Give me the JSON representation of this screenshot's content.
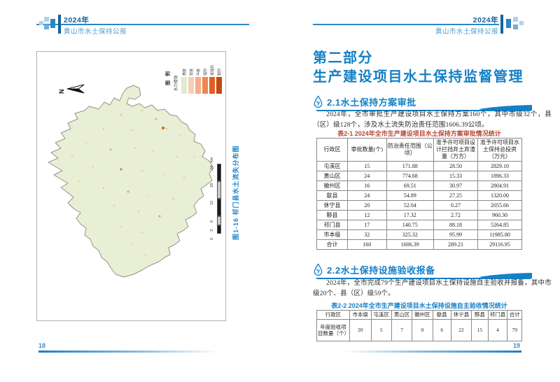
{
  "colors": {
    "accent_blue": "#1580c6",
    "header_year_blue": "#15629e",
    "header_subtitle_blue": "#4d9bd0",
    "table1_caption_red": "#b5483a",
    "page_number_blue": "#3090d4"
  },
  "left_page": {
    "header": {
      "year": "2024年",
      "title": "黄山市水土保持公报"
    },
    "map": {
      "north_label": "N",
      "legend": {
        "title": "图 例",
        "subtitle": "水力侵蚀",
        "classes": [
          {
            "label": "微度",
            "color": "#dfeccd"
          },
          {
            "label": "轻度",
            "color": "#f8cfb6"
          },
          {
            "label": "中度",
            "color": "#f5ad89"
          },
          {
            "label": "强烈",
            "color": "#ef8555"
          },
          {
            "label": "极强烈",
            "color": "#e25d20"
          },
          {
            "label": "剧烈",
            "color": "#c34a0f"
          }
        ]
      },
      "scale": {
        "ticks": [
          0,
          3,
          6,
          12,
          18,
          24
        ],
        "unit": "km"
      },
      "caption": "图1-16 祁门县水土流失分布图"
    },
    "page_number": "18"
  },
  "right_page": {
    "header": {
      "year": "2024年",
      "title": "黄山市水土保持公报"
    },
    "part_title": {
      "line1": "第二部分",
      "line2": "生产建设项目水土保持监督管理"
    },
    "section_2_1": {
      "heading": "2.1水土保持方案审批",
      "paragraph": "2024年，全市审批生产建设项目水土保持方案160个，其中市级32个，县（区）级128个，涉及水土流失防治责任范围1606.39公顷。",
      "table_caption": "表2-1 2024年全市生产建设项目水土保持方案审批情况统计",
      "table": {
        "headers": [
          "行政区",
          "审批数量(个)",
          "防治责任范围（公顷）",
          "准予许可项目设计拦挡弃土弃渣量（万方）",
          "准予许可项目水土保持总投资（万元）"
        ],
        "rows": [
          [
            "屯溪区",
            "15",
            "171.88",
            "28.50",
            "2829.10"
          ],
          [
            "黄山区",
            "24",
            "774.68",
            "15.33",
            "1896.33"
          ],
          [
            "徽州区",
            "16",
            "69.51",
            "30.97",
            "2804.91"
          ],
          [
            "歙县",
            "24",
            "54.89",
            "27.25",
            "1320.00"
          ],
          [
            "休宁县",
            "20",
            "52.04",
            "0.27",
            "2055.66"
          ],
          [
            "黟县",
            "12",
            "17.32",
            "2.72",
            "960.30"
          ],
          [
            "祁门县",
            "17",
            "140.75",
            "88.18",
            "5264.85"
          ],
          [
            "市本级",
            "32",
            "325.32",
            "95.99",
            "11985.80"
          ],
          [
            "合计",
            "160",
            "1606.39",
            "289.21",
            "29116.95"
          ]
        ]
      }
    },
    "section_2_2": {
      "heading": "2.2水土保持设施验收报备",
      "paragraph": "2024年，全市完成79个生产建设项目水土保持设施自主验收并报备，其中市级20个、县（区）级59个。",
      "table_caption": "表2-2 2024年全市生产建设项目水土保持设施自主验收情况统计",
      "table": {
        "headers": [
          "行政区",
          "市本级",
          "屯溪区",
          "黄山区",
          "徽州区",
          "歙县",
          "休宁县",
          "黟县",
          "祁门县",
          "合计"
        ],
        "rows": [
          [
            "年度验收项目数量（个）",
            "20",
            "5",
            "7",
            "0",
            "6",
            "22",
            "15",
            "4",
            "79"
          ]
        ]
      }
    },
    "page_number": "19"
  }
}
